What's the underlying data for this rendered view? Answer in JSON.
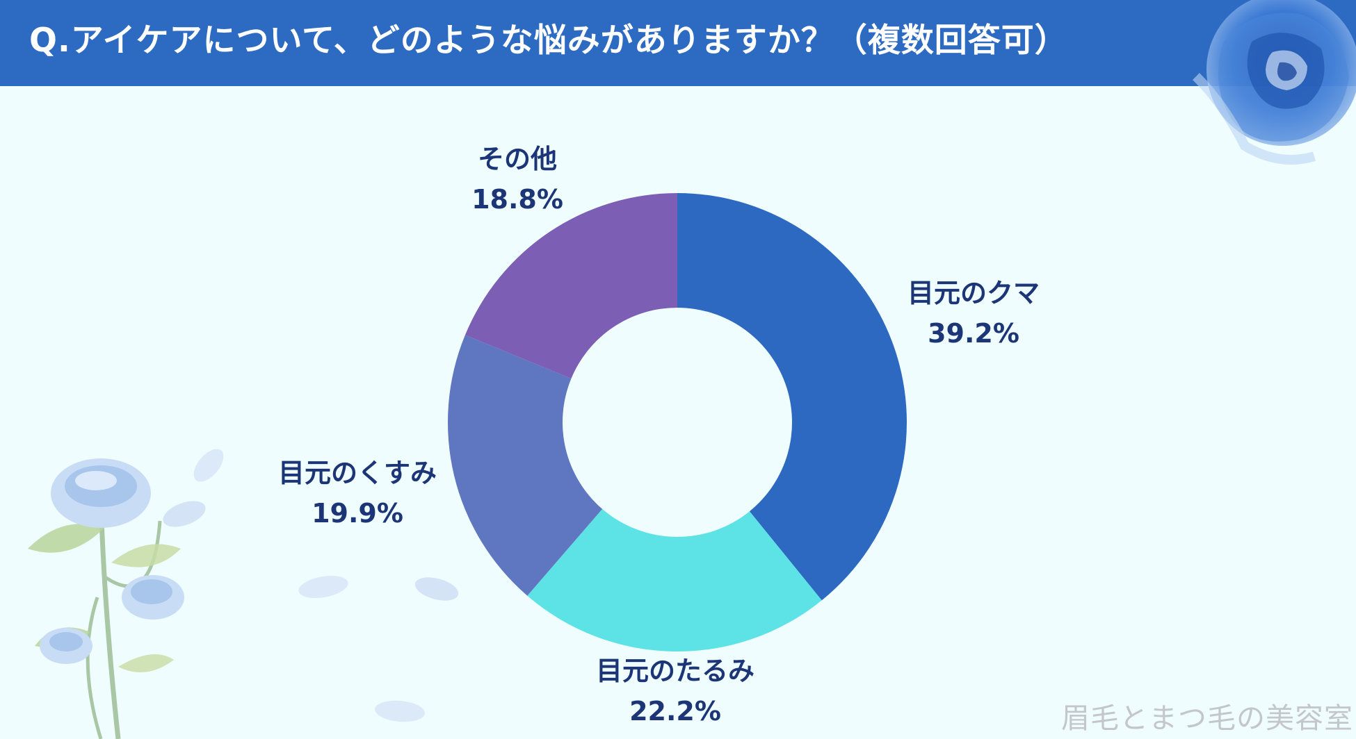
{
  "header": {
    "title": "Q.アイケアについて、どのような悩みがありますか？（複数回答可）"
  },
  "chart_data": {
    "type": "pie",
    "title": "Q.アイケアについて、どのような悩みがありますか？（複数回答可）",
    "donut": true,
    "start_angle_deg": 0,
    "direction": "clockwise",
    "slices": [
      {
        "label": "目元のクマ",
        "value": 39.2,
        "display": "39.2%",
        "color": "#2d69c1"
      },
      {
        "label": "目元のたるみ",
        "value": 22.2,
        "display": "22.2%",
        "color": "#5de3e6"
      },
      {
        "label": "目元のくすみ",
        "value": 19.9,
        "display": "19.9%",
        "color": "#5f77c0"
      },
      {
        "label": "その他",
        "value": 18.8,
        "display": "18.8%",
        "color": "#7c5fb5"
      }
    ]
  },
  "watermark": "眉毛とまつ毛の美容室",
  "colors": {
    "header_bg": "#2d6bc2",
    "page_bg": "#effdfe",
    "label_text": "#1c3576"
  }
}
